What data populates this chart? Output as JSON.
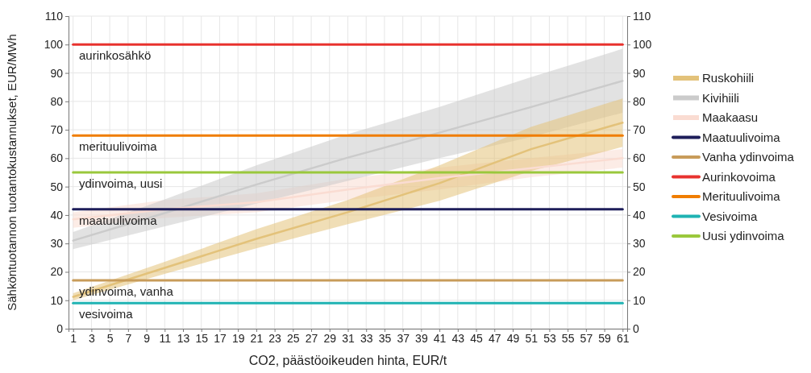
{
  "chart_data": {
    "type": "line",
    "xlabel": "CO2, päästöoikeuden hinta, EUR/t",
    "ylabel": "Sähköntuotannon tuotantokustannukset, EUR/MWh",
    "xlim": [
      0.5,
      61.5
    ],
    "xticks": [
      1,
      3,
      5,
      7,
      9,
      11,
      13,
      15,
      17,
      19,
      21,
      23,
      25,
      27,
      29,
      31,
      33,
      35,
      37,
      39,
      41,
      43,
      45,
      47,
      49,
      51,
      53,
      55,
      57,
      59,
      61
    ],
    "ylim": [
      0,
      110
    ],
    "yticks": [
      0,
      10,
      20,
      30,
      40,
      50,
      60,
      70,
      80,
      90,
      100,
      110
    ],
    "y2lim": [
      0,
      110
    ],
    "y2ticks": [
      0,
      10,
      20,
      30,
      40,
      50,
      60,
      70,
      80,
      90,
      100,
      110
    ],
    "grid": true,
    "legend": "right",
    "series": [
      {
        "name": "Ruskohiili",
        "color": "#e3c27a",
        "x": [
          1,
          11,
          21,
          31,
          41,
          51,
          61
        ],
        "values": [
          11.2,
          21.4,
          31.6,
          41,
          51.2,
          63.2,
          72.5
        ],
        "lower": [
          10,
          19.3,
          28.3,
          36.8,
          45,
          55.5,
          64
        ],
        "upper": [
          12.5,
          23.5,
          35,
          45.3,
          57.5,
          71,
          81
        ]
      },
      {
        "name": "Kivihiili",
        "color": "#cbcbcb",
        "x": [
          1,
          11,
          21,
          31,
          41,
          51,
          61
        ],
        "values": [
          31,
          40.7,
          50.7,
          60.2,
          69,
          78,
          87.2
        ],
        "lower": [
          28,
          36,
          44,
          52,
          60,
          67.5,
          76
        ],
        "upper": [
          34,
          45.5,
          57.5,
          68.5,
          78,
          88.5,
          98.5
        ]
      },
      {
        "name": "Maakaasu",
        "color": "#fadcd2",
        "x": [
          1,
          11,
          21,
          31,
          41,
          51,
          61
        ],
        "values": [
          38.5,
          42,
          44.5,
          49,
          53,
          56.5,
          60
        ],
        "lower": [
          35.5,
          39,
          41,
          45.3,
          49,
          53.3,
          56.7
        ],
        "upper": [
          41,
          45.3,
          47.6,
          52.8,
          56.7,
          60,
          63.2
        ]
      },
      {
        "name": "Maatuulivoima",
        "color": "#1e1e5a",
        "x": [
          1,
          61
        ],
        "values": [
          42,
          42
        ]
      },
      {
        "name": "Vanha ydinvoima",
        "color": "#c89c5a",
        "x": [
          1,
          61
        ],
        "values": [
          17,
          17
        ]
      },
      {
        "name": "Aurinkovoima",
        "color": "#e8322e",
        "x": [
          1,
          61
        ],
        "values": [
          100,
          100
        ]
      },
      {
        "name": "Merituulivoima",
        "color": "#f07d00",
        "x": [
          1,
          61
        ],
        "values": [
          68,
          68
        ]
      },
      {
        "name": "Vesivoima",
        "color": "#1fb3b3",
        "x": [
          1,
          61
        ],
        "values": [
          9,
          9
        ]
      },
      {
        "name": "Uusi ydinvoima",
        "color": "#9ac83c",
        "x": [
          1,
          61
        ],
        "values": [
          55,
          55
        ]
      }
    ],
    "annotations": [
      {
        "text": "aurinkosähkö",
        "y": 100
      },
      {
        "text": "merituulivoima",
        "y": 68
      },
      {
        "text": "ydinvoima, uusi",
        "y": 55
      },
      {
        "text": "maatuulivoima",
        "y": 42
      },
      {
        "text": "ydinvoima, vanha",
        "y": 17
      },
      {
        "text": "vesivoima",
        "y": 9
      }
    ]
  }
}
